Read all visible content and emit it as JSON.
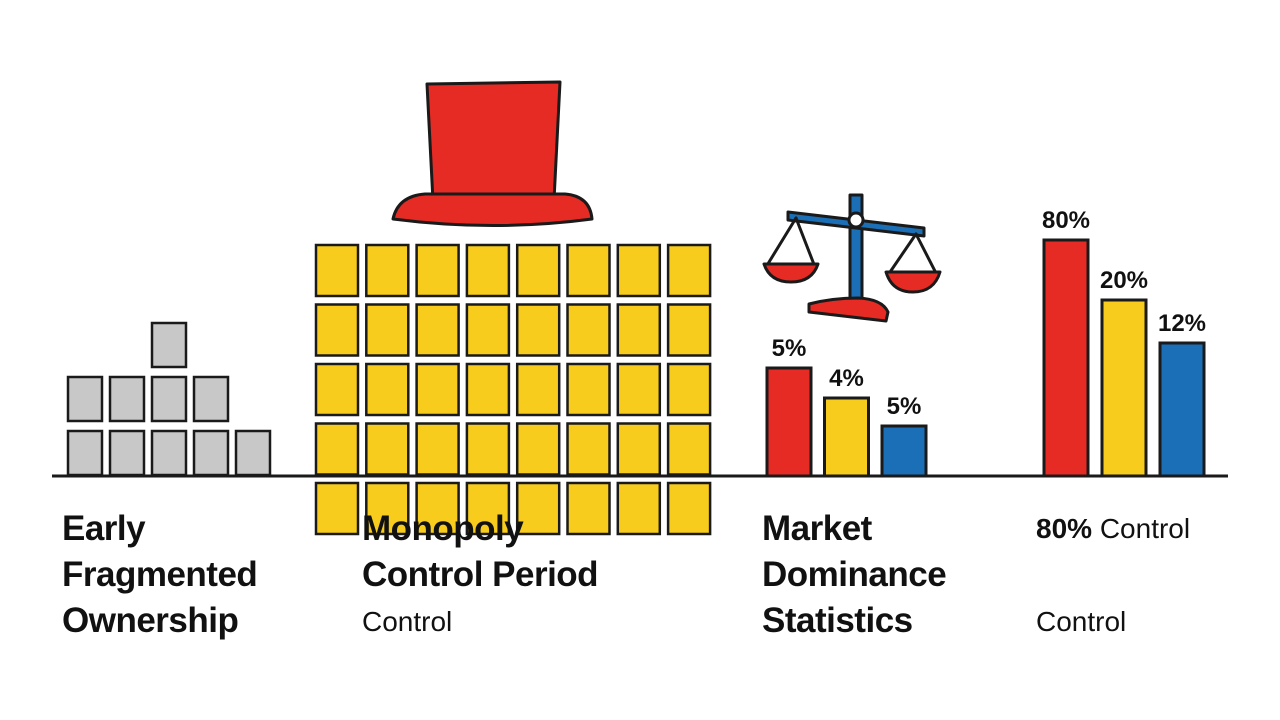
{
  "colors": {
    "grey": "#c8c8c8",
    "yellow": "#f7cc1d",
    "red": "#e52b24",
    "blue": "#1a6fb6",
    "outline": "#1a1a1a"
  },
  "icons": [
    "red-top-hat-icon",
    "balance-scale-icon"
  ],
  "panels": [
    {
      "title_lines": [
        "Early",
        "Fragmented",
        "Ownership"
      ],
      "subtitle": ""
    },
    {
      "title_lines": [
        "Monopoly",
        "Control Period"
      ],
      "subtitle": "Control"
    },
    {
      "title_lines": [
        "Market",
        "Dominance",
        "Statistics"
      ],
      "subtitle": ""
    },
    {
      "title_lines": [],
      "subtitle_top_value": "80%",
      "subtitle_top_text": " Control",
      "subtitle": "Control"
    }
  ],
  "chart_data": [
    {
      "type": "bar",
      "series": [
        {
          "values": [
            5,
            4,
            5
          ]
        }
      ],
      "labels": [
        "5%",
        "4%",
        "5%"
      ],
      "colors": [
        "#e52b24",
        "#f7cc1d",
        "#1a6fb6"
      ]
    },
    {
      "type": "bar",
      "series": [
        {
          "values": [
            80,
            20,
            12
          ]
        }
      ],
      "labels": [
        "80%",
        "20%",
        "12%"
      ],
      "colors": [
        "#e52b24",
        "#f7cc1d",
        "#1a6fb6"
      ]
    }
  ]
}
